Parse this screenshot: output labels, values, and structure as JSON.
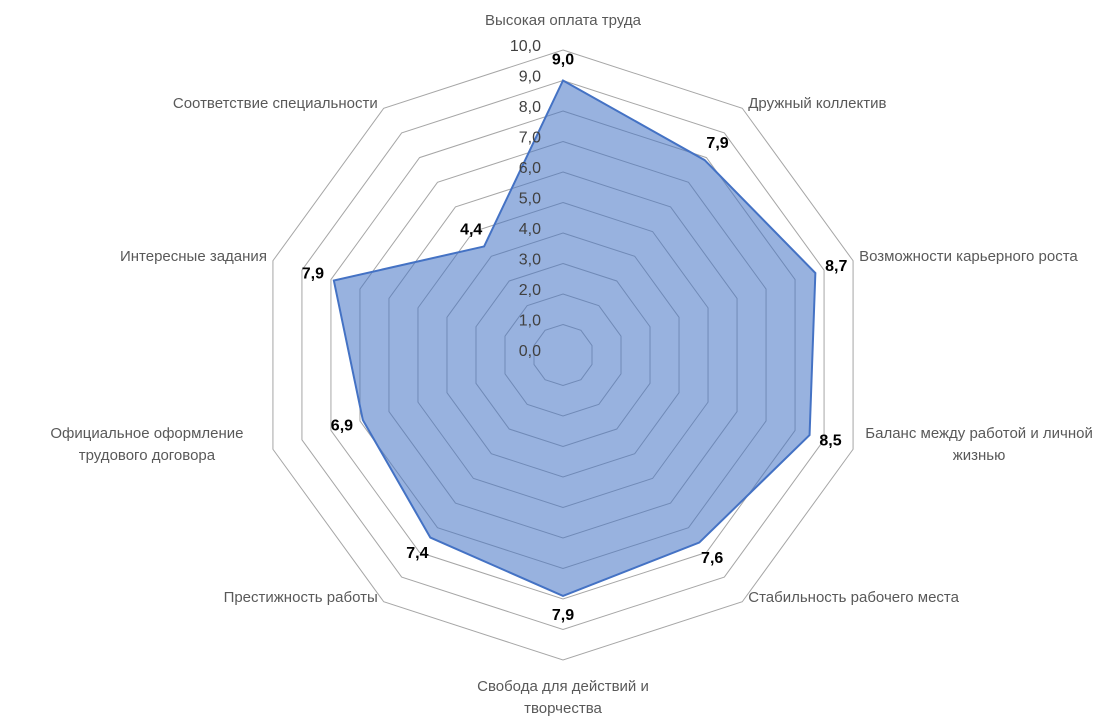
{
  "chart_data": {
    "type": "radar",
    "categories": [
      "Высокая оплата труда",
      "Дружный коллектив",
      "Возможности карьерного роста",
      "Баланс между работой и личной жизнью",
      "Стабильность рабочего места",
      "Свобода для действий и творчества",
      "Престижность работы",
      "Официальное оформление трудового договора",
      "Интересные задания",
      "Соответствие специальности"
    ],
    "values": [
      9.0,
      7.9,
      8.7,
      8.5,
      7.6,
      7.9,
      7.4,
      6.9,
      7.9,
      4.4
    ],
    "value_labels": [
      "9,0",
      "7,9",
      "8,7",
      "8,5",
      "7,6",
      "7,9",
      "7,4",
      "6,9",
      "7,9",
      "4,4"
    ],
    "color": "#4472c4",
    "ylim": [
      0,
      10
    ],
    "yticks": [
      {
        "value": 0,
        "label": "0,0"
      },
      {
        "value": 1,
        "label": "1,0"
      },
      {
        "value": 2,
        "label": "2,0"
      },
      {
        "value": 3,
        "label": "3,0"
      },
      {
        "value": 4,
        "label": "4,0"
      },
      {
        "value": 5,
        "label": "5,0"
      },
      {
        "value": 6,
        "label": "6,0"
      },
      {
        "value": 7,
        "label": "7,0"
      },
      {
        "value": 8,
        "label": "8,0"
      },
      {
        "value": 9,
        "label": "9,0"
      },
      {
        "value": 10,
        "label": "10,0"
      }
    ],
    "grid": true
  }
}
